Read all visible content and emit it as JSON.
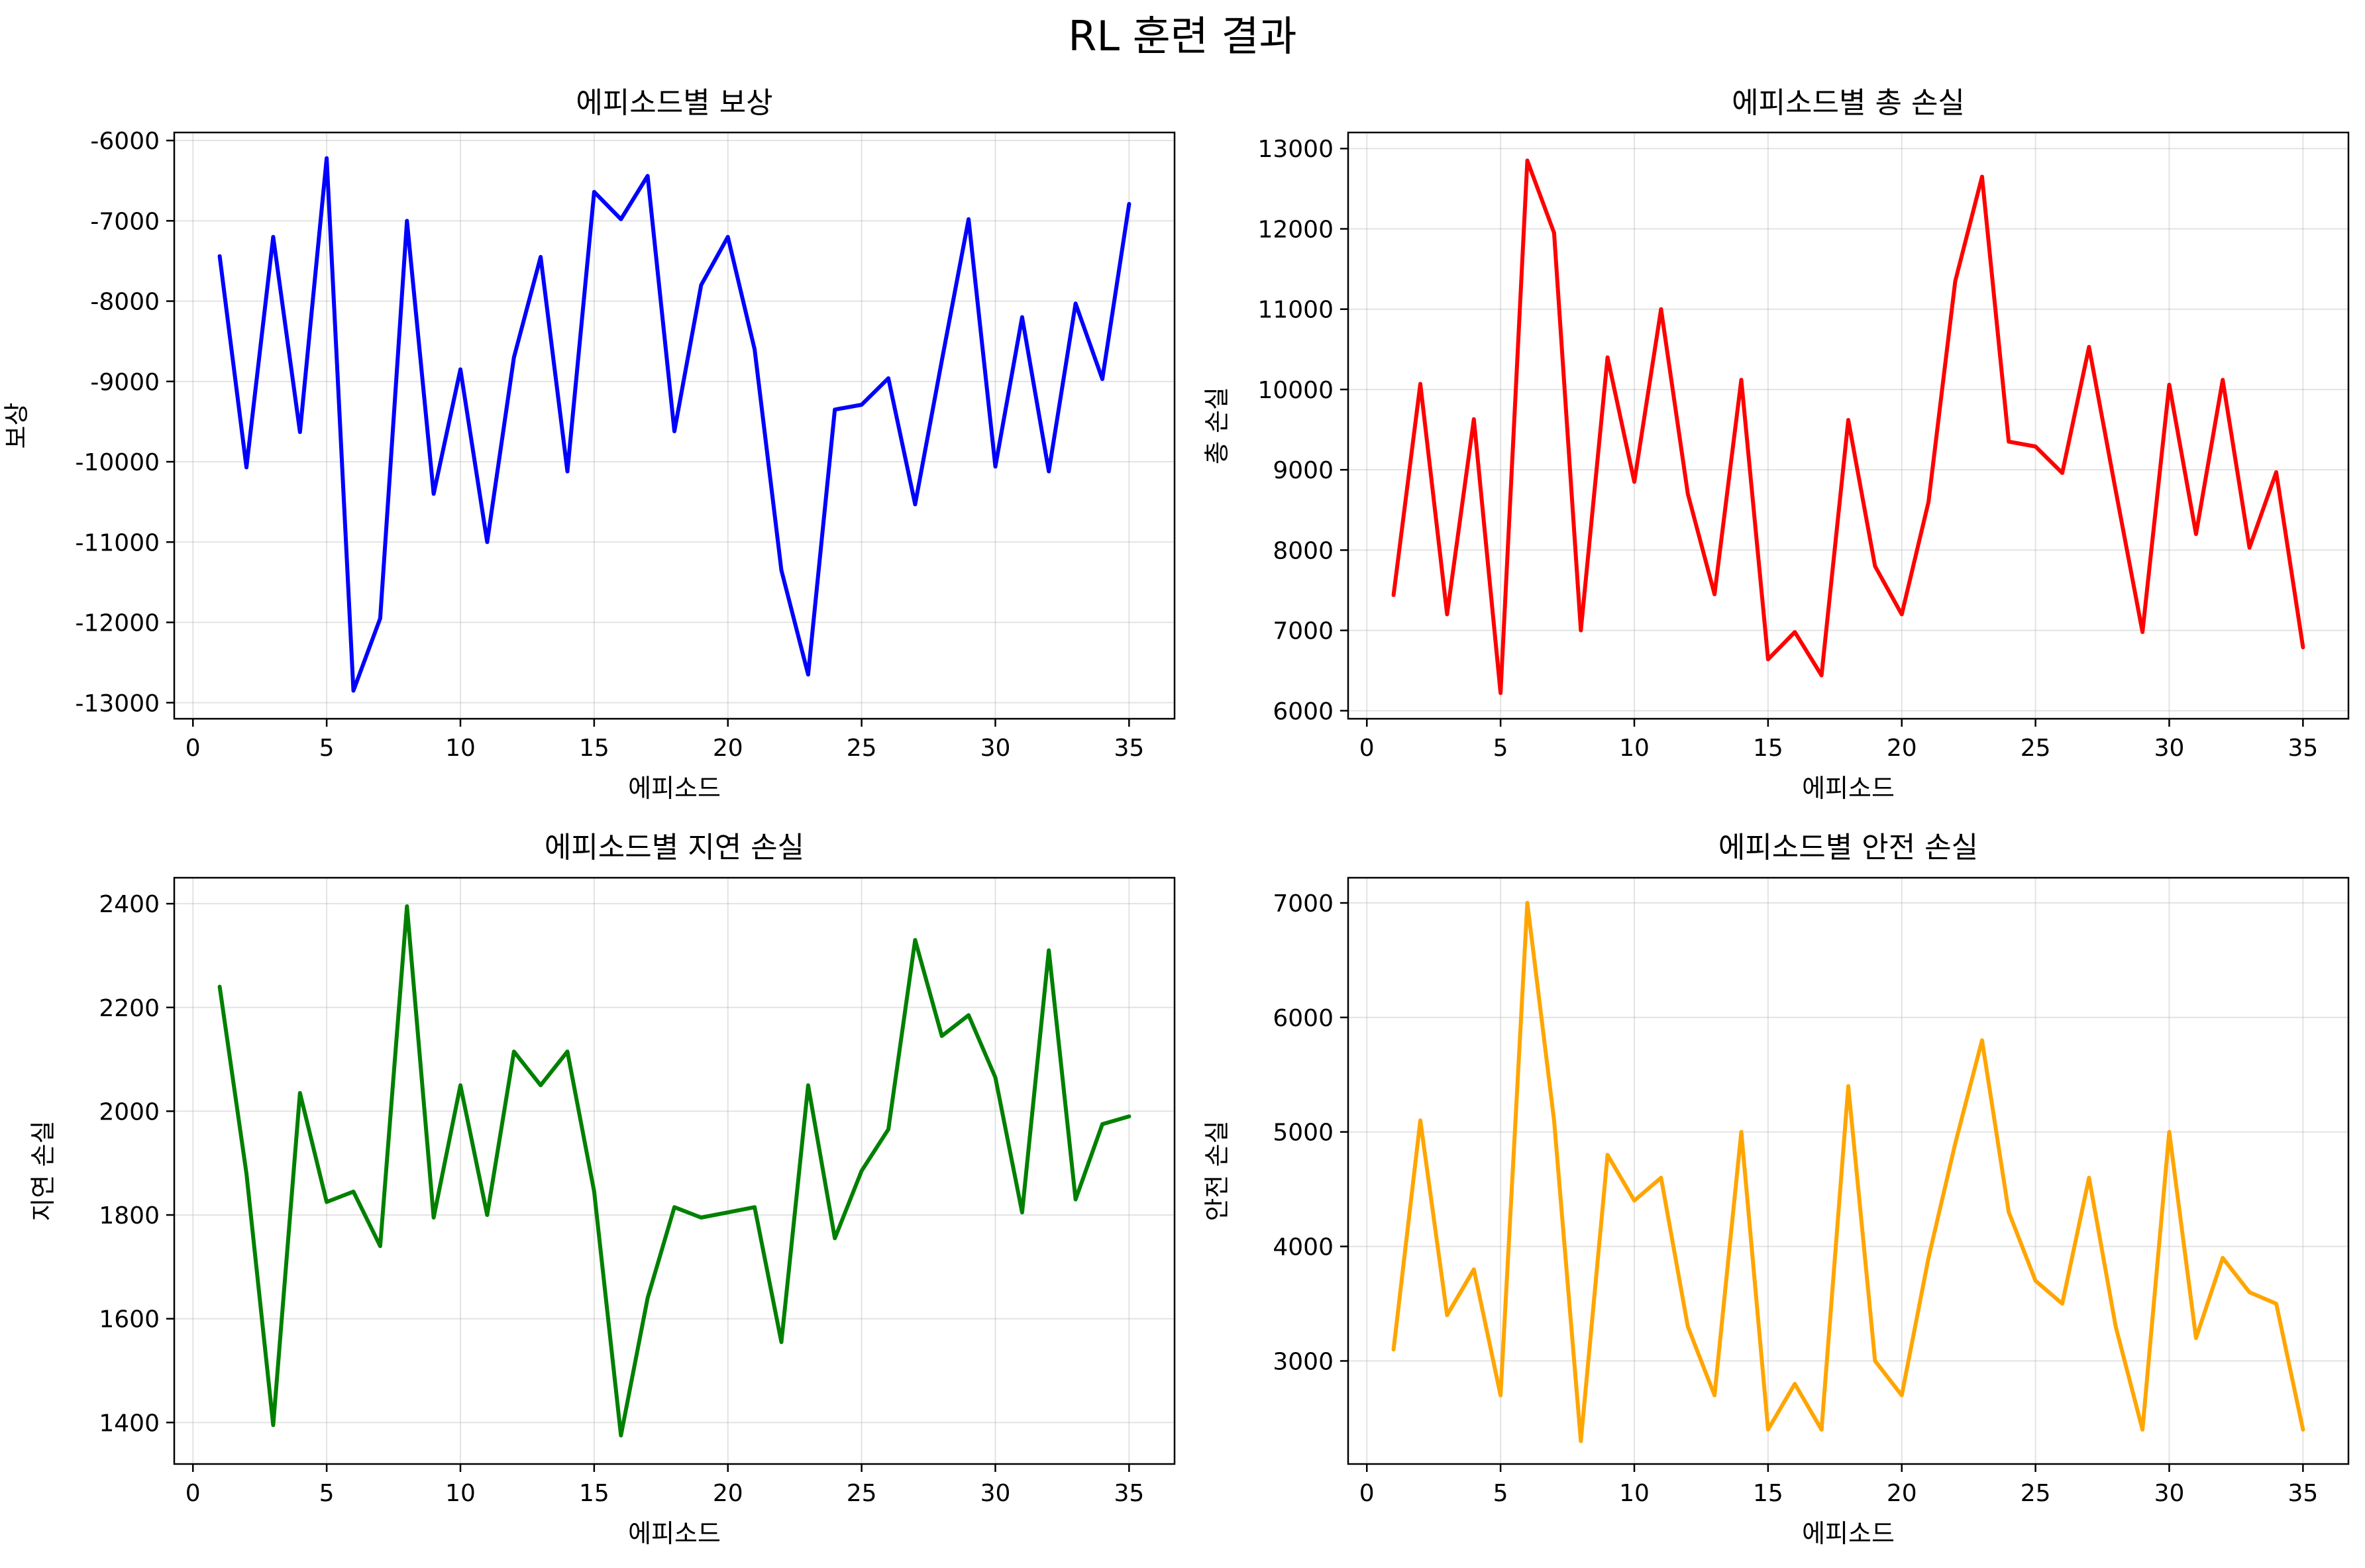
{
  "suptitle": "RL 훈련 결과",
  "chart_data": [
    {
      "type": "line",
      "title": "에피소드별 보상",
      "xlabel": "에피소드",
      "ylabel": "보상",
      "color": "#0000ff",
      "grid": true,
      "xlim": [
        -0.7,
        36.7
      ],
      "ylim": [
        -13200,
        -5900
      ],
      "xticks": [
        0,
        5,
        10,
        15,
        20,
        25,
        30,
        35
      ],
      "yticks": [
        -13000,
        -12000,
        -11000,
        -10000,
        -9000,
        -8000,
        -7000,
        -6000
      ],
      "x": [
        1,
        2,
        3,
        4,
        5,
        6,
        7,
        8,
        9,
        10,
        11,
        12,
        13,
        14,
        15,
        16,
        17,
        18,
        19,
        20,
        21,
        22,
        23,
        24,
        25,
        26,
        27,
        28,
        29,
        30,
        31,
        32,
        33,
        34,
        35
      ],
      "values": [
        -7440,
        -10070,
        -7200,
        -9630,
        -6220,
        -12850,
        -11950,
        -7000,
        -10400,
        -8850,
        -11000,
        -8700,
        -7450,
        -10120,
        -6640,
        -6980,
        -6440,
        -9620,
        -7800,
        -7200,
        -8600,
        -11350,
        -12650,
        -9350,
        -9290,
        -8960,
        -10530,
        -8740,
        -6980,
        -10060,
        -8200,
        -10120,
        -8030,
        -8970,
        -6790
      ]
    },
    {
      "type": "line",
      "title": "에피소드별 총 손실",
      "xlabel": "에피소드",
      "ylabel": "총 손실",
      "color": "#ff0000",
      "grid": true,
      "xlim": [
        -0.7,
        36.7
      ],
      "ylim": [
        5900,
        13200
      ],
      "xticks": [
        0,
        5,
        10,
        15,
        20,
        25,
        30,
        35
      ],
      "yticks": [
        6000,
        7000,
        8000,
        9000,
        10000,
        11000,
        12000,
        13000
      ],
      "x": [
        1,
        2,
        3,
        4,
        5,
        6,
        7,
        8,
        9,
        10,
        11,
        12,
        13,
        14,
        15,
        16,
        17,
        18,
        19,
        20,
        21,
        22,
        23,
        24,
        25,
        26,
        27,
        28,
        29,
        30,
        31,
        32,
        33,
        34,
        35
      ],
      "values": [
        7440,
        10070,
        7200,
        9630,
        6220,
        12850,
        11950,
        7000,
        10400,
        8850,
        11000,
        8700,
        7450,
        10120,
        6640,
        6980,
        6440,
        9620,
        7800,
        7200,
        8600,
        11350,
        12650,
        9350,
        9290,
        8960,
        10530,
        8740,
        6980,
        10060,
        8200,
        10120,
        8030,
        8970,
        6790
      ]
    },
    {
      "type": "line",
      "title": "에피소드별 지연 손실",
      "xlabel": "에피소드",
      "ylabel": "지연 손실",
      "color": "#008000",
      "grid": true,
      "xlim": [
        -0.7,
        36.7
      ],
      "ylim": [
        1320,
        2450
      ],
      "xticks": [
        0,
        5,
        10,
        15,
        20,
        25,
        30,
        35
      ],
      "yticks": [
        1400,
        1600,
        1800,
        2000,
        2200,
        2400
      ],
      "x": [
        1,
        2,
        3,
        4,
        5,
        6,
        7,
        8,
        9,
        10,
        11,
        12,
        13,
        14,
        15,
        16,
        17,
        18,
        19,
        20,
        21,
        22,
        23,
        24,
        25,
        26,
        27,
        28,
        29,
        30,
        31,
        32,
        33,
        34,
        35
      ],
      "values": [
        2240,
        1880,
        1395,
        2035,
        1825,
        1845,
        1740,
        2395,
        1795,
        2050,
        1800,
        2115,
        2050,
        2115,
        1845,
        1375,
        1640,
        1815,
        1795,
        1805,
        1815,
        1555,
        2050,
        1755,
        1885,
        1965,
        2330,
        2145,
        2185,
        2065,
        1805,
        2310,
        1830,
        1975,
        1990
      ]
    },
    {
      "type": "line",
      "title": "에피소드별 안전 손실",
      "xlabel": "에피소드",
      "ylabel": "안전 손실",
      "color": "#ffa500",
      "grid": true,
      "xlim": [
        -0.7,
        36.7
      ],
      "ylim": [
        2100,
        7220
      ],
      "xticks": [
        0,
        5,
        10,
        15,
        20,
        25,
        30,
        35
      ],
      "yticks": [
        3000,
        4000,
        5000,
        6000,
        7000
      ],
      "x": [
        1,
        2,
        3,
        4,
        5,
        6,
        7,
        8,
        9,
        10,
        11,
        12,
        13,
        14,
        15,
        16,
        17,
        18,
        19,
        20,
        21,
        22,
        23,
        24,
        25,
        26,
        27,
        28,
        29,
        30,
        31,
        32,
        33,
        34,
        35
      ],
      "values": [
        3100,
        5100,
        3400,
        3800,
        2700,
        7000,
        5100,
        2300,
        4800,
        4400,
        4600,
        3300,
        2700,
        5000,
        2400,
        2800,
        2400,
        5400,
        3000,
        2700,
        3900,
        4900,
        5800,
        4300,
        3700,
        3500,
        4600,
        3300,
        2400,
        5000,
        3200,
        3900,
        3600,
        3500,
        2400
      ]
    }
  ]
}
